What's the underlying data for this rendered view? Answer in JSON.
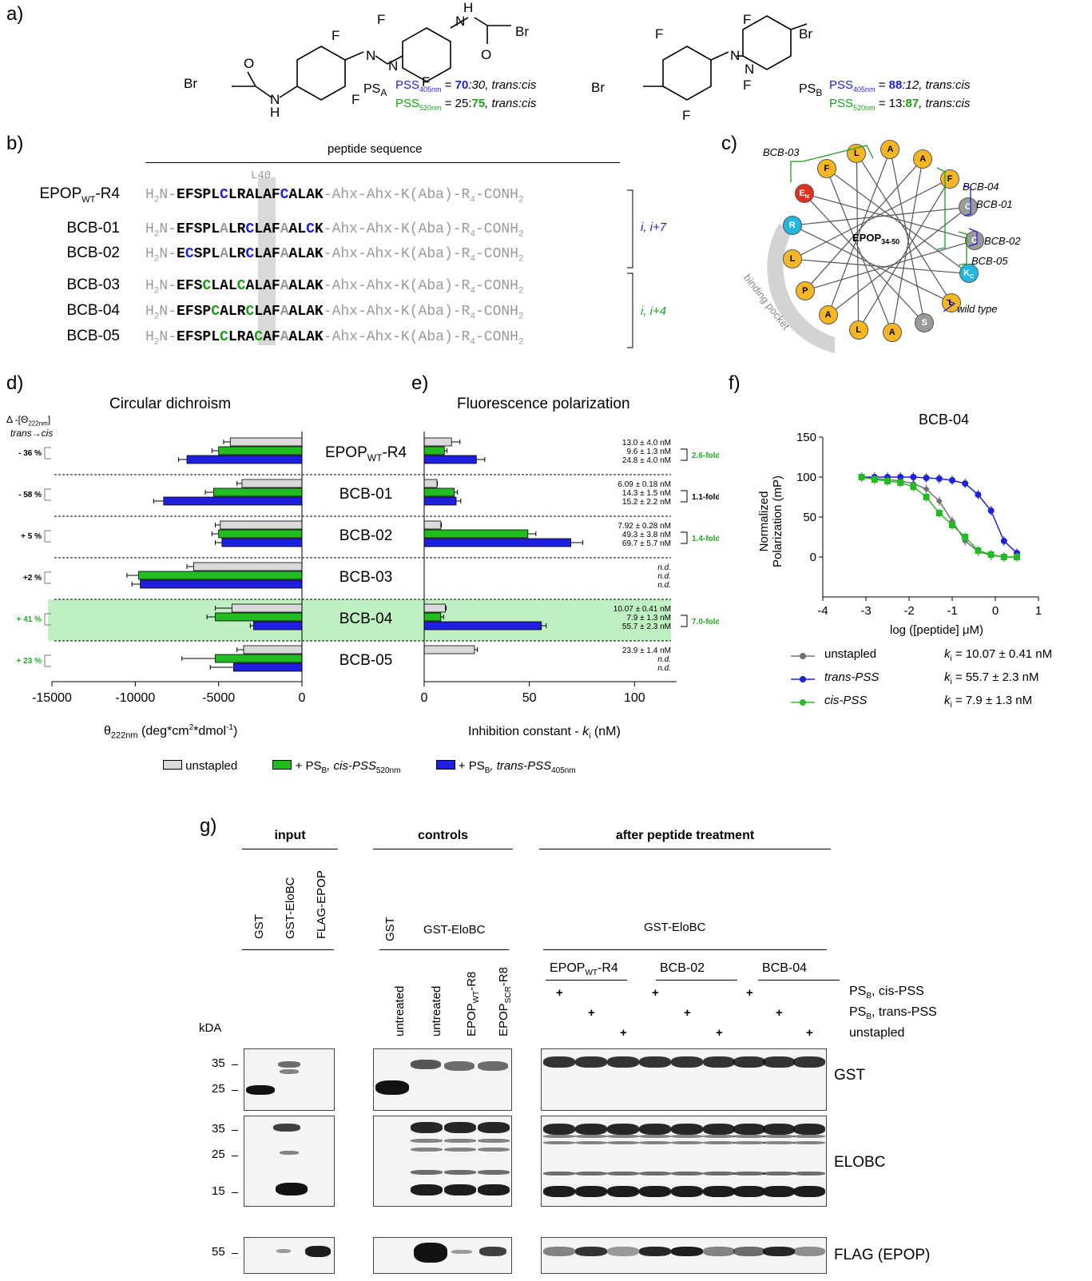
{
  "panel_a": {
    "label": "a)",
    "psa": {
      "name": "PS",
      "sub": "A",
      "line1": {
        "pss": "PSS",
        "sub": "405nm",
        "eq": " = ",
        "strong": "70",
        "rest": ":30, trans:cis"
      },
      "line2": {
        "pss": "PSS",
        "sub": "520nm",
        "eq": " = 25:",
        "strong": "75",
        "rest": ", trans:cis"
      }
    },
    "psb": {
      "name": "PS",
      "sub": "B",
      "line1": {
        "pss": "PSS",
        "sub": "405nm",
        "eq": " = ",
        "strong": "88",
        "rest": ":12, trans:cis"
      },
      "line2": {
        "pss": "PSS",
        "sub": "520nm",
        "eq": " = 13:",
        "strong": "87",
        "rest": ", trans:cis"
      }
    },
    "atoms": {
      "F": "F",
      "Br": "Br",
      "N": "N",
      "H": "H",
      "O": "O"
    }
  },
  "panel_b": {
    "label": "b)",
    "title": "peptide sequence",
    "l40": "L40",
    "suffix": "-Ahx-Ahx-K(Aba)-R",
    "suffix_sub": "4",
    "suffix_end": "-CONH",
    "suffix_end_sub": "2",
    "prefix": "H",
    "prefix_sub": "2",
    "prefix_end": "N-",
    "rows": [
      {
        "name": "EPOP",
        "name_sub": "WT",
        "name_end": "-R4",
        "seq": [
          [
            "b",
            "EFSPL"
          ],
          [
            "bb",
            "C"
          ],
          [
            "b",
            "LRALAF"
          ],
          [
            "bb",
            "C"
          ],
          [
            "b",
            "ALAK"
          ]
        ]
      },
      {
        "name": "BCB-01",
        "name_sub": "",
        "name_end": "",
        "seq": [
          [
            "b",
            "EFSPL"
          ],
          [
            "g",
            "A"
          ],
          [
            "b",
            "LR"
          ],
          [
            "bb",
            "C"
          ],
          [
            "b",
            "LAF"
          ],
          [
            "g",
            "A"
          ],
          [
            "b",
            "AL"
          ],
          [
            "bb",
            "C"
          ],
          [
            "b",
            "K"
          ]
        ]
      },
      {
        "name": "BCB-02",
        "name_sub": "",
        "name_end": "",
        "seq": [
          [
            "b",
            "E"
          ],
          [
            "bb",
            "C"
          ],
          [
            "b",
            "SPL"
          ],
          [
            "g",
            "A"
          ],
          [
            "b",
            "LR"
          ],
          [
            "bb",
            "C"
          ],
          [
            "b",
            "LAF"
          ],
          [
            "g",
            "A"
          ],
          [
            "b",
            "ALAK"
          ]
        ]
      },
      {
        "name": "BCB-03",
        "name_sub": "",
        "name_end": "",
        "seq": [
          [
            "b",
            "EFS"
          ],
          [
            "bg",
            "C"
          ],
          [
            "b",
            "LAL"
          ],
          [
            "bg",
            "C"
          ],
          [
            "b",
            "ALAF"
          ],
          [
            "g",
            "A"
          ],
          [
            "b",
            "ALAK"
          ]
        ]
      },
      {
        "name": "BCB-04",
        "name_sub": "",
        "name_end": "",
        "seq": [
          [
            "b",
            "EFSP"
          ],
          [
            "bg",
            "C"
          ],
          [
            "b",
            "ALR"
          ],
          [
            "bg",
            "C"
          ],
          [
            "b",
            "LAF"
          ],
          [
            "g",
            "A"
          ],
          [
            "b",
            "ALAK"
          ]
        ]
      },
      {
        "name": "BCB-05",
        "name_sub": "",
        "name_end": "",
        "seq": [
          [
            "b",
            "EFSPL"
          ],
          [
            "bg",
            "C"
          ],
          [
            "b",
            "LRA"
          ],
          [
            "bg",
            "C"
          ],
          [
            "b",
            "AF"
          ],
          [
            "g",
            "A"
          ],
          [
            "b",
            "ALAK"
          ]
        ]
      }
    ],
    "bracket1": "i, i+7",
    "bracket2": "i, i+4"
  },
  "panel_c": {
    "label": "c)",
    "center": "EPOP",
    "center_sub": "34-50",
    "pocket": "binding pocket",
    "labels": [
      "BCB-03",
      "BCB-04",
      "BCB-01",
      "BCB-02",
      "BCB-05",
      "wild type"
    ],
    "nodes": [
      {
        "t": "R",
        "c": "#22b8e0"
      },
      {
        "t": "E",
        "sub": "N",
        "c": "#e0301e"
      },
      {
        "t": "F",
        "c": "#f5b623"
      },
      {
        "t": "L",
        "c": "#f5b623"
      },
      {
        "t": "A",
        "c": "#f5b623"
      },
      {
        "t": "A",
        "c": "#f5b623"
      },
      {
        "t": "F",
        "c": "#f5b623"
      },
      {
        "t": "C",
        "c": "#9a9a9a"
      },
      {
        "t": "C",
        "c": "#9a9a9a"
      },
      {
        "t": "K",
        "sub": "C",
        "c": "#22b8e0"
      },
      {
        "t": "L",
        "c": "#f5b623"
      },
      {
        "t": "S",
        "c": "#9a9a9a"
      },
      {
        "t": "A",
        "c": "#f5b623"
      },
      {
        "t": "L",
        "c": "#f5b623"
      },
      {
        "t": "A",
        "c": "#f5b623"
      },
      {
        "t": "P",
        "c": "#f5b623"
      },
      {
        "t": "L",
        "c": "#f5b623"
      }
    ]
  },
  "panel_d": {
    "label": "d)",
    "title": "Circular dichroism",
    "delta_header": "Δ -[Θ",
    "delta_header_sub": "222nm",
    "delta_header_end": "]",
    "delta_sub": "trans→cis",
    "xlabel": "θ",
    "xlabel_sub": "222nm",
    "xlabel_end": " (deg*cm",
    "xlabel_sup": "2",
    "xlabel_end2": "*dmol",
    "xlabel_sup2": "-1",
    "xlabel_close": ")"
  },
  "panel_e": {
    "label": "e)",
    "title": "Fluorescence polarization",
    "xlabel": "Inhibition constant - ",
    "xlabel_k": "k",
    "xlabel_ki": "i",
    "xlabel_end": " (nM)"
  },
  "panel_f": {
    "label": "f)",
    "title": "BCB-04",
    "ylabel1": "Normalized",
    "ylabel2": "Polarization (mP)",
    "xlabel": "log ([peptide] μM)",
    "legend": [
      {
        "name": "unstapled",
        "k": "k",
        "ksub": "i",
        "val": " = 10.07 ± 0.41 nM",
        "color": "#707070"
      },
      {
        "name": "trans-PSS",
        "k": "k",
        "ksub": "i",
        "val": " = 55.7 ± 2.3 nM",
        "color": "#1f1fe0"
      },
      {
        "name": "cis-PSS",
        "k": "k",
        "ksub": "i",
        "val": " =   7.9 ± 1.3 nM",
        "color": "#22bb22"
      }
    ]
  },
  "legend_de": [
    {
      "label": "unstapled",
      "color": "#d9d9d9"
    },
    {
      "label": "+ PS",
      "sub": "B",
      "it": ", cis-PSS",
      "sub2": "520nm",
      "color": "#22bb22"
    },
    {
      "label": "+ PS",
      "sub": "B",
      "it": ", trans-PSS",
      "sub2": "405nm",
      "color": "#1f1fe0"
    }
  ],
  "chart_data": [
    {
      "type": "bar",
      "title": "Circular dichroism",
      "xlabel": "θ222nm (deg*cm2*dmol-1)",
      "xlim": [
        -15000,
        0
      ],
      "xticks": [
        "-15000",
        "-10000",
        "-5000",
        "0"
      ],
      "categories": [
        "EPOPWT-R4",
        "BCB-01",
        "BCB-02",
        "BCB-03",
        "BCB-04",
        "BCB-05"
      ],
      "delta_labels": [
        "- 36 %",
        "- 58 %",
        "+ 5 %",
        "+2 %",
        "+ 41 %",
        "+ 23 %"
      ],
      "series": [
        {
          "name": "unstapled",
          "values": [
            -4300,
            -3600,
            -4900,
            -6500,
            -4200,
            -3500
          ],
          "errors": [
            400,
            300,
            300,
            400,
            1000,
            400
          ]
        },
        {
          "name": "+ PSB, cis-PSS520nm",
          "values": [
            -5000,
            -5300,
            -5000,
            -9800,
            -5200,
            -5200
          ],
          "errors": [
            400,
            500,
            400,
            700,
            500,
            2000
          ]
        },
        {
          "name": "+ PSB, trans-PSS405nm",
          "values": [
            -6900,
            -8300,
            -4800,
            -9700,
            -2900,
            -4100
          ],
          "errors": [
            500,
            600,
            400,
            500,
            200,
            1400
          ]
        }
      ]
    },
    {
      "type": "bar",
      "title": "Fluorescence polarization",
      "xlabel": "Inhibition constant - ki (nM)",
      "xlim": [
        0,
        120
      ],
      "xticks": [
        "0",
        "50",
        "100"
      ],
      "categories": [
        "EPOPWT-R4",
        "BCB-01",
        "BCB-02",
        "BCB-03",
        "BCB-04",
        "BCB-05"
      ],
      "series": [
        {
          "name": "unstapled",
          "values": [
            13.0,
            6.09,
            7.92,
            null,
            10.07,
            23.9
          ],
          "errors": [
            4.0,
            0.18,
            0.28,
            null,
            0.41,
            1.4
          ]
        },
        {
          "name": "+ PSB, cis-PSS520nm",
          "values": [
            9.6,
            14.3,
            49.3,
            null,
            7.9,
            null
          ],
          "errors": [
            1.3,
            1.5,
            3.8,
            null,
            1.3,
            null
          ]
        },
        {
          "name": "+ PSB, trans-PSS405nm",
          "values": [
            24.8,
            15.2,
            69.7,
            null,
            55.7,
            null
          ],
          "errors": [
            4.0,
            2.2,
            5.7,
            null,
            2.3,
            null
          ]
        }
      ],
      "value_labels": [
        [
          "13.0 ± 4.0  nM",
          "9.6 ± 1.3  nM",
          "24.8 ± 4.0  nM"
        ],
        [
          "6.09 ± 0.18 nM",
          "14.3 ± 1.5  nM",
          "15.2 ± 2.2  nM"
        ],
        [
          "7.92 ± 0.28 nM",
          "49.3 ± 3.8  nM",
          "69.7 ± 5.7  nM"
        ],
        [
          "n.d.",
          "n.d.",
          "n.d."
        ],
        [
          "10.07 ± 0.41 nM",
          "7.9 ± 1.3  nM",
          "55.7 ± 2.3  nM"
        ],
        [
          "23.9 ± 1.4  nM",
          "n.d.",
          "n.d."
        ]
      ],
      "fold_labels": [
        "2.6-fold",
        "1.1-fold",
        "1.4-fold",
        "",
        "7.0-fold",
        ""
      ],
      "fold_colors": [
        "#22aa22",
        "#000000",
        "#22aa22",
        "",
        "#22aa22",
        ""
      ]
    },
    {
      "type": "scatter",
      "title": "BCB-04",
      "xlabel": "log ([peptide] μM)",
      "ylabel": "Normalized Polarization (mP)",
      "xlim": [
        -4,
        1
      ],
      "ylim": [
        -50,
        150
      ],
      "xticks": [
        "-4",
        "-3",
        "-2",
        "-1",
        "0",
        "1"
      ],
      "yticks": [
        "150",
        "100",
        "50",
        "0"
      ],
      "series": [
        {
          "name": "unstapled",
          "x": [
            -3.1,
            -2.8,
            -2.5,
            -2.2,
            -1.9,
            -1.6,
            -1.3,
            -1.0,
            -0.7,
            -0.4,
            -0.1,
            0.2,
            0.5
          ],
          "y": [
            100,
            98,
            97,
            95,
            92,
            85,
            70,
            45,
            20,
            7,
            2,
            0,
            0
          ]
        },
        {
          "name": "trans-PSS",
          "x": [
            -3.1,
            -2.8,
            -2.5,
            -2.2,
            -1.9,
            -1.6,
            -1.3,
            -1.0,
            -0.7,
            -0.4,
            -0.1,
            0.2,
            0.5
          ],
          "y": [
            100,
            100,
            100,
            100,
            100,
            99,
            98,
            96,
            92,
            78,
            58,
            20,
            5
          ]
        },
        {
          "name": "cis-PSS",
          "x": [
            -3.1,
            -2.8,
            -2.5,
            -2.2,
            -1.9,
            -1.6,
            -1.3,
            -1.0,
            -0.7,
            -0.4,
            -0.1,
            0.2,
            0.5
          ],
          "y": [
            100,
            97,
            95,
            93,
            88,
            75,
            55,
            40,
            25,
            8,
            3,
            0,
            0
          ]
        }
      ]
    }
  ],
  "panel_g": {
    "label": "g)",
    "headers": [
      "input",
      "controls",
      "after peptide treatment"
    ],
    "input_lanes": [
      "GST",
      "GST-EloBC",
      "FLAG-EPOP"
    ],
    "controls_lane_gst": "GST",
    "controls_group": "GST-EloBC",
    "controls_lanes": [
      "untreated",
      "untreated",
      "EPOP",
      "EPOP"
    ],
    "controls_lane_subs": [
      "",
      "",
      "WT",
      "SCR"
    ],
    "controls_lane_ends": [
      "",
      "",
      "-R8",
      "-R8"
    ],
    "after_group": "GST-EloBC",
    "after_subgroups": [
      {
        "name": "EPOP",
        "sub": "WT",
        "end": "-R4"
      },
      {
        "name": "BCB-02",
        "sub": "",
        "end": ""
      },
      {
        "name": "BCB-04",
        "sub": "",
        "end": ""
      }
    ],
    "plus": "+",
    "conditions": [
      {
        "name": "PS",
        "sub": "B",
        "rest": ", cis-PSS"
      },
      {
        "name": "PS",
        "sub": "B",
        "rest": ", trans-PSS"
      },
      {
        "name": "unstapled",
        "sub": "",
        "rest": ""
      }
    ],
    "kda": "kDA",
    "markers_gst": [
      "35",
      "25"
    ],
    "markers_elobc": [
      "35",
      "25",
      "15"
    ],
    "markers_flag": [
      "55"
    ],
    "blot_labels": [
      "GST",
      "ELOBC",
      "FLAG (EPOP)"
    ]
  }
}
